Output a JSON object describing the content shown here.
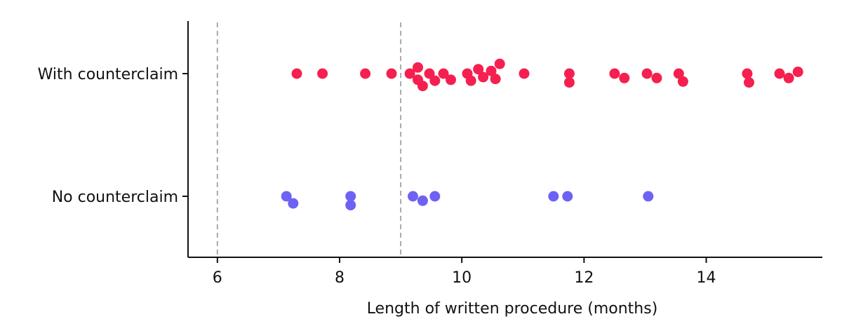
{
  "chart_data": {
    "type": "scatter",
    "subtype": "swarm",
    "xlabel": "Length of written procedure (months)",
    "xlim": [
      5.52,
      15.9
    ],
    "xticks": [
      6,
      8,
      10,
      12,
      14
    ],
    "categories": [
      "With counterclaim",
      "No counterclaim"
    ],
    "reference_lines_x": [
      6,
      9
    ],
    "grid": false,
    "series": [
      {
        "category": "With counterclaim",
        "color": "#f5204f",
        "points": [
          {
            "x": 7.3,
            "y": 0.0
          },
          {
            "x": 7.72,
            "y": 0.0
          },
          {
            "x": 8.42,
            "y": 0.0
          },
          {
            "x": 8.85,
            "y": 0.0
          },
          {
            "x": 9.15,
            "y": 0.0
          },
          {
            "x": 9.28,
            "y": 0.07
          },
          {
            "x": 9.28,
            "y": -0.07
          },
          {
            "x": 9.36,
            "y": -0.14
          },
          {
            "x": 9.47,
            "y": 0.0
          },
          {
            "x": 9.56,
            "y": -0.08
          },
          {
            "x": 9.7,
            "y": 0.0
          },
          {
            "x": 9.82,
            "y": -0.07
          },
          {
            "x": 10.09,
            "y": 0.0
          },
          {
            "x": 10.15,
            "y": -0.08
          },
          {
            "x": 10.27,
            "y": 0.05
          },
          {
            "x": 10.35,
            "y": -0.04
          },
          {
            "x": 10.48,
            "y": 0.03
          },
          {
            "x": 10.55,
            "y": -0.06
          },
          {
            "x": 10.62,
            "y": 0.11
          },
          {
            "x": 11.02,
            "y": 0.0
          },
          {
            "x": 11.76,
            "y": 0.0
          },
          {
            "x": 11.76,
            "y": -0.1
          },
          {
            "x": 12.5,
            "y": 0.0
          },
          {
            "x": 12.66,
            "y": -0.05
          },
          {
            "x": 13.03,
            "y": 0.0
          },
          {
            "x": 13.19,
            "y": -0.05
          },
          {
            "x": 13.55,
            "y": 0.0
          },
          {
            "x": 13.62,
            "y": -0.09
          },
          {
            "x": 14.67,
            "y": 0.0
          },
          {
            "x": 14.7,
            "y": -0.1
          },
          {
            "x": 15.2,
            "y": 0.0
          },
          {
            "x": 15.35,
            "y": -0.05
          },
          {
            "x": 15.5,
            "y": 0.02
          }
        ]
      },
      {
        "category": "No counterclaim",
        "color": "#6e62f5",
        "points": [
          {
            "x": 7.13,
            "y": 0.0
          },
          {
            "x": 7.24,
            "y": -0.08
          },
          {
            "x": 8.18,
            "y": 0.0
          },
          {
            "x": 8.18,
            "y": -0.1
          },
          {
            "x": 9.2,
            "y": 0.0
          },
          {
            "x": 9.36,
            "y": -0.05
          },
          {
            "x": 9.56,
            "y": 0.0
          },
          {
            "x": 11.5,
            "y": 0.0
          },
          {
            "x": 11.73,
            "y": 0.0
          },
          {
            "x": 13.05,
            "y": 0.0
          }
        ]
      }
    ]
  }
}
